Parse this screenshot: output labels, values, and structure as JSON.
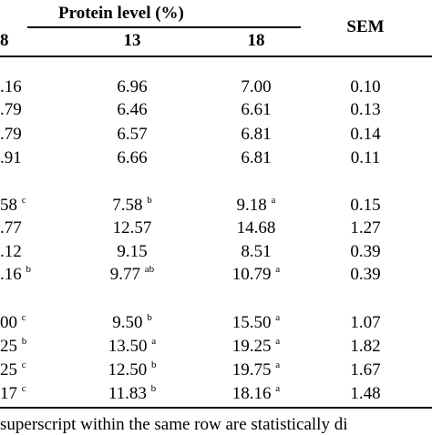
{
  "header": {
    "group_title": "Protein level (%)",
    "col1": "8",
    "col2": "13",
    "col3": "18",
    "sem": "SEM"
  },
  "rows": [
    {
      "c1": ".16",
      "s1": "",
      "c2": "6.96",
      "s2": "",
      "c3": "7.00",
      "s3": "",
      "sem": "0.10"
    },
    {
      "c1": ".79",
      "s1": "",
      "c2": "6.46",
      "s2": "",
      "c3": "6.61",
      "s3": "",
      "sem": "0.13"
    },
    {
      "c1": ".79",
      "s1": "",
      "c2": "6.57",
      "s2": "",
      "c3": "6.81",
      "s3": "",
      "sem": "0.14"
    },
    {
      "c1": ".91",
      "s1": "",
      "c2": "6.66",
      "s2": "",
      "c3": "6.81",
      "s3": "",
      "sem": "0.11"
    },
    {
      "c1": "58",
      "s1": "c",
      "c2": "7.58",
      "s2": "b",
      "c3": "9.18",
      "s3": "a",
      "sem": "0.15"
    },
    {
      "c1": ".77",
      "s1": "",
      "c2": "12.57",
      "s2": "",
      "c3": "14.68",
      "s3": "",
      "sem": "1.27"
    },
    {
      "c1": ".12",
      "s1": "",
      "c2": "9.15",
      "s2": "",
      "c3": "8.51",
      "s3": "",
      "sem": "0.39"
    },
    {
      "c1": ".16",
      "s1": "b",
      "c2": "9.77",
      "s2": "ab",
      "c3": "10.79",
      "s3": "a",
      "sem": "0.39"
    },
    {
      "c1": "00",
      "s1": "c",
      "c2": "9.50",
      "s2": "b",
      "c3": "15.50",
      "s3": "a",
      "sem": "1.07"
    },
    {
      "c1": "25",
      "s1": "b",
      "c2": "13.50",
      "s2": "a",
      "c3": "19.25",
      "s3": "a",
      "sem": "1.82"
    },
    {
      "c1": "25",
      "s1": "c",
      "c2": "12.50",
      "s2": "b",
      "c3": "19.75",
      "s3": "a",
      "sem": "1.67"
    },
    {
      "c1": "17",
      "s1": "c",
      "c2": "11.83",
      "s2": "b",
      "c3": "18.16",
      "s3": "a",
      "sem": "1.48"
    }
  ],
  "footnote": "superscript within the same row are statistically di"
}
